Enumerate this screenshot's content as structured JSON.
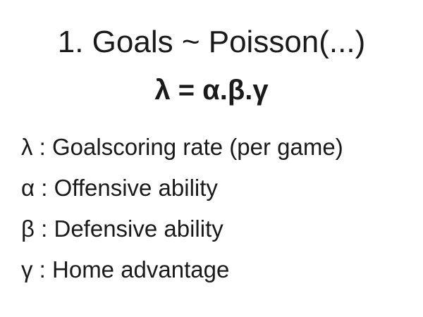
{
  "slide": {
    "title": "1. Goals ~ Poisson(...)",
    "formula": "λ = α.β.γ",
    "definitions": [
      {
        "text": "λ : Goalscoring rate (per game)"
      },
      {
        "text": "α : Offensive ability"
      },
      {
        "text": "β : Defensive ability"
      },
      {
        "text": "γ : Home advantage"
      }
    ]
  }
}
